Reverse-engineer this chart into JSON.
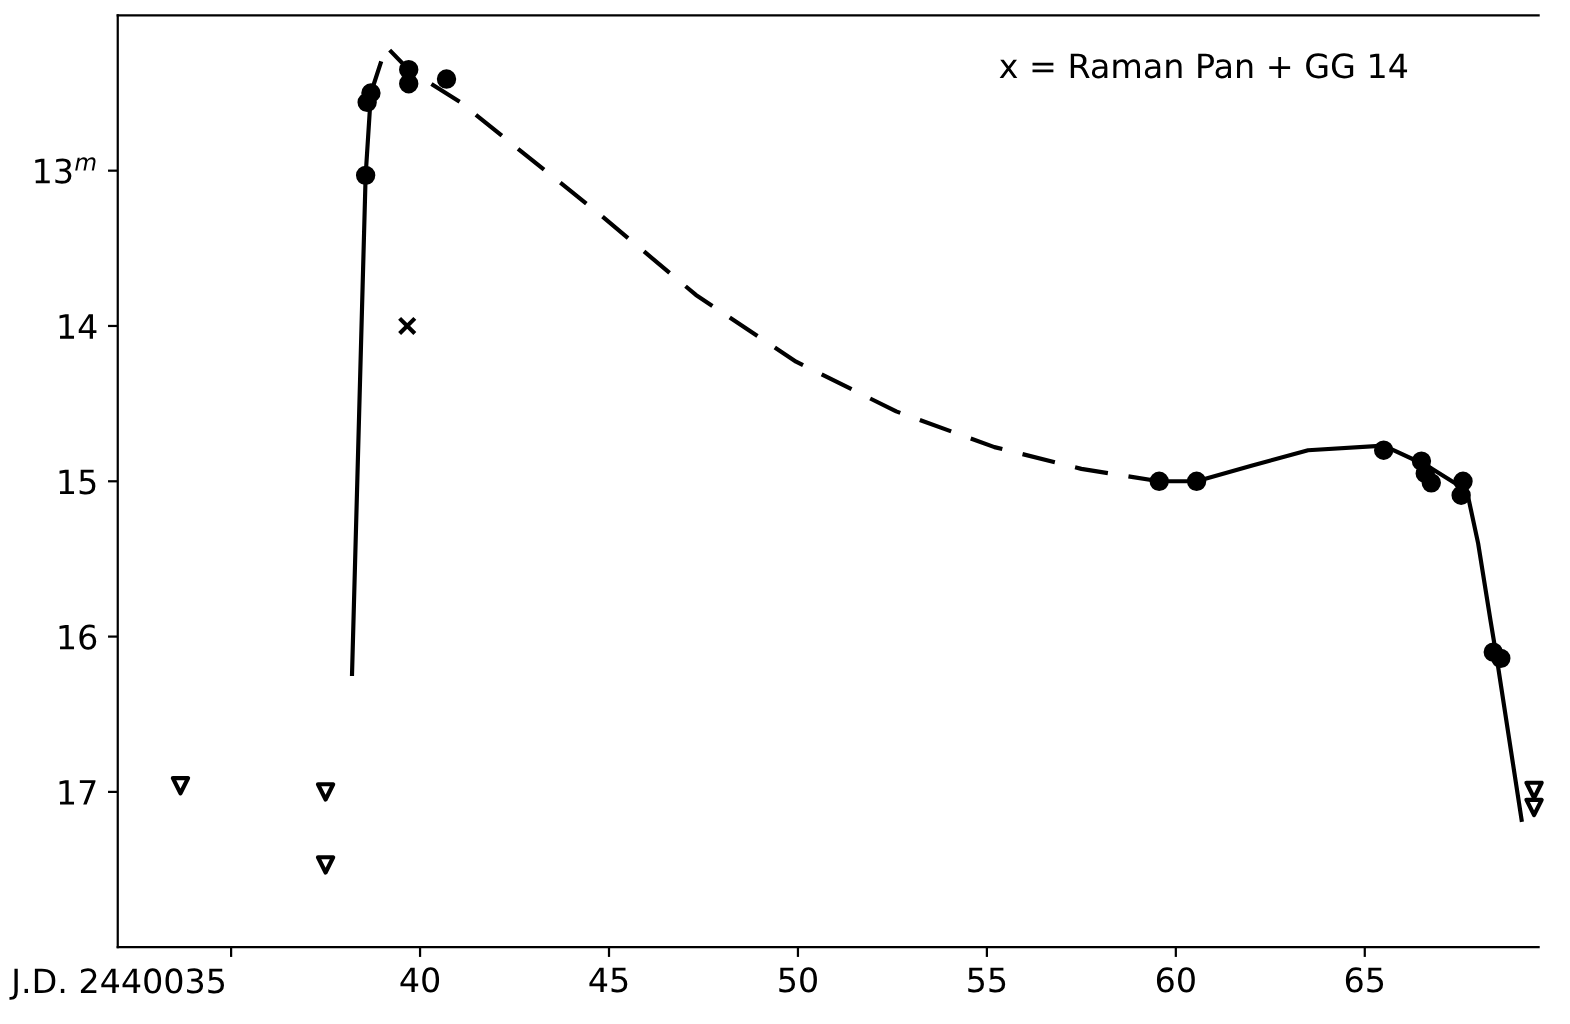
{
  "chart_data": {
    "type": "scatter",
    "xlabel": "J.D. 2440035",
    "xlim": [
      32,
      69.6
    ],
    "ylim": [
      18,
      12
    ],
    "xticks": [
      {
        "value": 35,
        "label": null
      },
      40,
      45,
      50,
      55,
      60,
      65
    ],
    "yticks": [
      {
        "value": 13,
        "label": "13$^{m}$"
      },
      14,
      15,
      16,
      17
    ],
    "grid": false,
    "legend": false,
    "annotations": [
      "x = Raman Pan + GG 14"
    ],
    "series": [
      {
        "marker": "circle",
        "color": "#000000",
        "x": [
          38.56,
          38.6,
          38.7,
          39.7,
          39.7,
          40.7,
          59.56,
          60.55,
          65.5,
          66.5,
          66.6,
          66.76,
          67.6,
          67.55,
          68.4,
          68.6
        ],
        "values": [
          13.03,
          12.56,
          12.5,
          12.35,
          12.44,
          12.41,
          15.0,
          15.0,
          14.8,
          14.87,
          14.95,
          15.01,
          15.0,
          15.09,
          16.1,
          16.14
        ]
      },
      {
        "marker": "cross",
        "color": "#000000",
        "x": [
          39.66
        ],
        "values": [
          14.0
        ]
      },
      {
        "marker": "triangle",
        "color": "#000000",
        "x": [
          33.66,
          37.5,
          37.5,
          69.48,
          69.48
        ],
        "values": [
          16.96,
          17.0,
          17.47,
          16.99,
          17.1
        ]
      },
      {
        "type": "line",
        "line_style": "solid",
        "marker": "none",
        "color": "#000000",
        "x": [
          38.2,
          38.56,
          38.7
        ],
        "values": [
          16.24,
          13.03,
          12.5
        ]
      },
      {
        "type": "line",
        "line_style": "dashed",
        "marker": "none",
        "color": "#000000",
        "x": [
          38.7,
          39.1,
          39.7,
          41.07,
          42.8,
          44.7,
          47.3,
          49.95,
          52.6,
          55.2,
          57.5,
          59.56
        ],
        "values": [
          12.5,
          12.2,
          12.35,
          12.56,
          12.9,
          13.27,
          13.8,
          14.23,
          14.55,
          14.78,
          14.92,
          15.0
        ]
      },
      {
        "type": "line",
        "line_style": "solid",
        "marker": "none",
        "color": "#000000",
        "x": [
          59.56,
          60.55,
          62,
          63.5,
          65.5,
          66.65,
          67.7,
          68.0,
          68.33,
          68.5,
          69.15
        ],
        "values": [
          15.0,
          15.0,
          14.9,
          14.8,
          14.77,
          14.9,
          15.06,
          15.4,
          15.9,
          16.15,
          17.18
        ]
      }
    ]
  }
}
